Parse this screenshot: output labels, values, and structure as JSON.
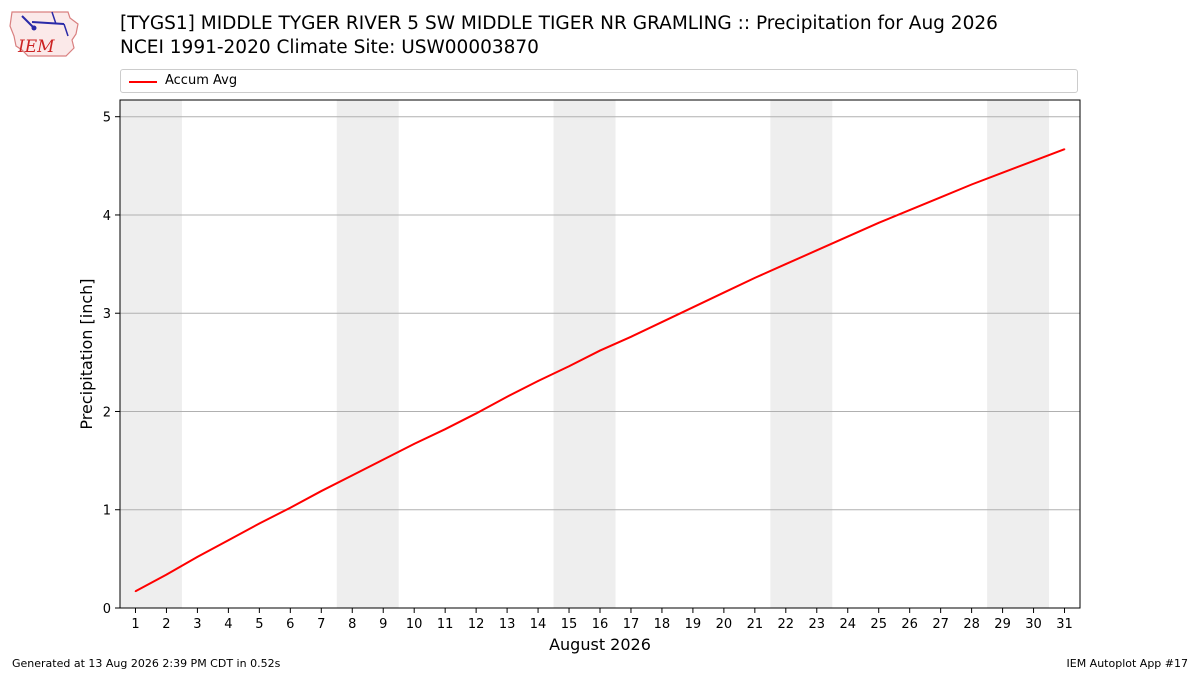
{
  "header": {
    "title_line1": "[TYGS1] MIDDLE TYGER RIVER 5 SW MIDDLE TIGER NR GRAMLING :: Precipitation for Aug 2026",
    "title_line2": "NCEI 1991-2020 Climate Site: USW00003870"
  },
  "logo": {
    "text": "IEM",
    "icon": "iem-logo-icon"
  },
  "legend": {
    "label": "Accum Avg",
    "color": "#ff0000"
  },
  "footer": {
    "left": "Generated at 13 Aug 2026 2:39 PM CDT in 0.52s",
    "right": "IEM Autoplot App #17"
  },
  "chart_data": {
    "type": "line",
    "title": "[TYGS1] MIDDLE TYGER RIVER 5 SW MIDDLE TIGER NR GRAMLING :: Precipitation for Aug 2026",
    "subtitle": "NCEI 1991-2020 Climate Site: USW00003870",
    "xlabel": "August 2026",
    "ylabel": "Precipitation [inch]",
    "x": [
      1,
      2,
      3,
      4,
      5,
      6,
      7,
      8,
      9,
      10,
      11,
      12,
      13,
      14,
      15,
      16,
      17,
      18,
      19,
      20,
      21,
      22,
      23,
      24,
      25,
      26,
      27,
      28,
      29,
      30,
      31
    ],
    "series": [
      {
        "name": "Accum Avg",
        "color": "#ff0000",
        "values": [
          0.17,
          0.34,
          0.52,
          0.69,
          0.86,
          1.02,
          1.19,
          1.35,
          1.51,
          1.67,
          1.82,
          1.98,
          2.15,
          2.31,
          2.46,
          2.62,
          2.76,
          2.91,
          3.06,
          3.21,
          3.36,
          3.5,
          3.64,
          3.78,
          3.92,
          4.05,
          4.18,
          4.31,
          4.43,
          4.55,
          4.67
        ]
      }
    ],
    "xticks": [
      "1",
      "2",
      "3",
      "4",
      "5",
      "6",
      "7",
      "8",
      "9",
      "10",
      "11",
      "12",
      "13",
      "14",
      "15",
      "16",
      "17",
      "18",
      "19",
      "20",
      "21",
      "22",
      "23",
      "24",
      "25",
      "26",
      "27",
      "28",
      "29",
      "30",
      "31"
    ],
    "yticks": [
      "0",
      "1",
      "2",
      "3",
      "4",
      "5"
    ],
    "xlim": [
      0.5,
      31.5
    ],
    "ylim": [
      0,
      5.17
    ],
    "grid": "horizontal",
    "legend_position": "top",
    "weekend_bands": [
      [
        1,
        2
      ],
      [
        8,
        9
      ],
      [
        15,
        16
      ],
      [
        22,
        23
      ],
      [
        29,
        30
      ]
    ],
    "band_color": "#eeeeee"
  }
}
